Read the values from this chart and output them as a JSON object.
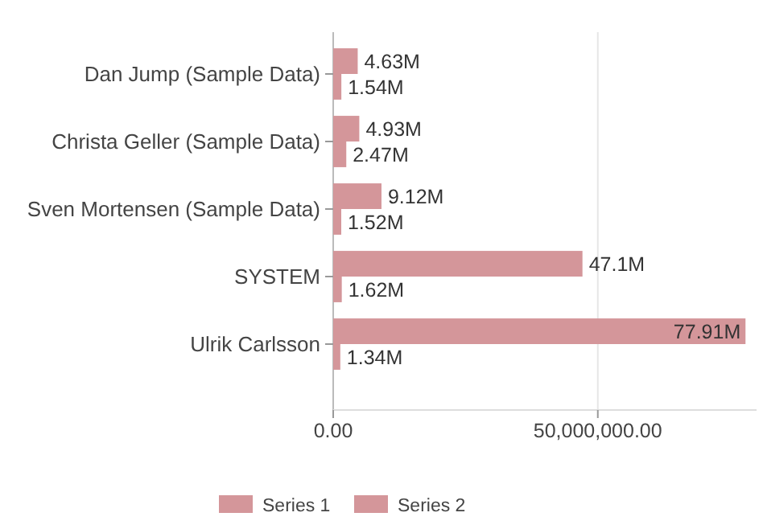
{
  "chart_data": {
    "type": "bar",
    "orientation": "horizontal",
    "categories": [
      "Dan Jump (Sample Data)",
      "Christa Geller (Sample Data)",
      "Sven Mortensen (Sample Data)",
      "SYSTEM",
      "Ulrik Carlsson"
    ],
    "series": [
      {
        "name": "Series 1",
        "color": "#d4969a",
        "values": [
          4630000,
          4930000,
          9120000,
          47100000,
          77910000
        ],
        "value_labels": [
          "4.63M",
          "4.93M",
          "9.12M",
          "47.1M",
          "77.91M"
        ]
      },
      {
        "name": "Series 2",
        "color": "#d4969a",
        "values": [
          1540000,
          2470000,
          1520000,
          1620000,
          1340000
        ],
        "value_labels": [
          "1.54M",
          "2.47M",
          "1.52M",
          "1.62M",
          "1.34M"
        ]
      }
    ],
    "xlim": [
      0,
      80000000
    ],
    "xticks": [
      {
        "value": 0,
        "label": "0.00"
      },
      {
        "value": 50000000,
        "label": "50,000,000.00"
      }
    ],
    "grid": "x",
    "legend": "bottom"
  }
}
